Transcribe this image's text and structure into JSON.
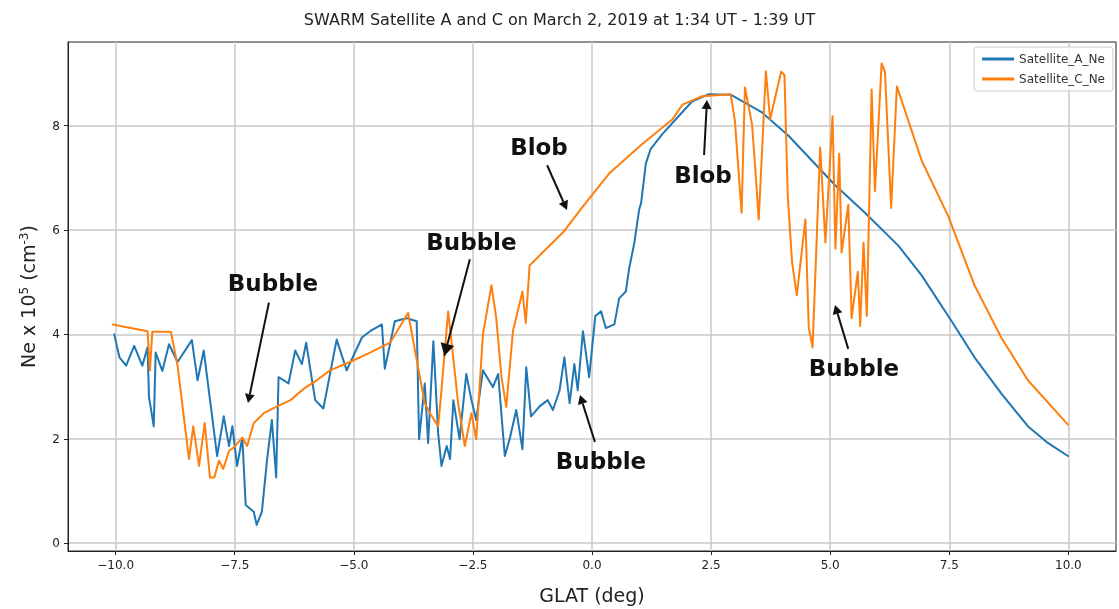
{
  "chart_data": {
    "type": "line",
    "title": "SWARM Satellite A and C on March 2, 2019 at 1:34 UT - 1:39 UT",
    "xlabel": "GLAT (deg)",
    "ylabel": "Ne x 10$^{5}$ (cm$^{-3}$)",
    "xlim": [
      -11,
      11
    ],
    "xticks": [
      {
        "value": -10,
        "label": "−10.0"
      },
      {
        "value": -7.5,
        "label": "−7.5"
      },
      {
        "value": -5,
        "label": "−5.0"
      },
      {
        "value": -2.5,
        "label": "−2.5"
      },
      {
        "value": 0,
        "label": "0.0"
      },
      {
        "value": 2.5,
        "label": "2.5"
      },
      {
        "value": 5,
        "label": "5.0"
      },
      {
        "value": 7.5,
        "label": "7.5"
      },
      {
        "value": 10,
        "label": "10.0"
      }
    ],
    "ylim": [
      -0.15,
      9.6
    ],
    "yticks": [
      0,
      2,
      4,
      6,
      8
    ],
    "grid": true,
    "legend": "top right",
    "marker": "none",
    "line_style": "solid",
    "series": [
      {
        "name": "Satellite_A_Ne",
        "color": "#1f77b4",
        "x": [
          -10.03,
          -9.92,
          -9.78,
          -9.61,
          -9.44,
          -9.33,
          -9.3,
          -9.2,
          -9.16,
          -9.02,
          -8.88,
          -8.7,
          -8.4,
          -8.28,
          -8.15,
          -7.87,
          -7.73,
          -7.62,
          -7.55,
          -7.45,
          -7.34,
          -7.27,
          -7.1,
          -7.04,
          -6.93,
          -6.82,
          -6.72,
          -6.63,
          -6.58,
          -6.37,
          -6.23,
          -6.09,
          -6.0,
          -5.91,
          -5.81,
          -5.64,
          -5.36,
          -5.15,
          -4.83,
          -4.66,
          -4.41,
          -4.35,
          -4.24,
          -4.14,
          -3.89,
          -3.68,
          -3.63,
          -3.51,
          -3.44,
          -3.33,
          -3.23,
          -3.16,
          -3.05,
          -2.98,
          -2.91,
          -2.78,
          -2.64,
          -2.53,
          -2.43,
          -2.29,
          -2.08,
          -1.97,
          -1.83,
          -1.73,
          -1.59,
          -1.46,
          -1.38,
          -1.28,
          -1.1,
          -0.93,
          -0.82,
          -0.68,
          -0.58,
          -0.47,
          -0.37,
          -0.3,
          -0.19,
          -0.06,
          0.07,
          0.19,
          0.29,
          0.47,
          0.57,
          0.71,
          0.78,
          0.89,
          0.99,
          1.03,
          1.13,
          1.23,
          1.48,
          1.76,
          2.1,
          2.45,
          2.91,
          3.57,
          4.13,
          5.1,
          5.73,
          6.43,
          6.92,
          7.55,
          8.03,
          8.59,
          9.15,
          9.57,
          9.99
        ],
        "values": [
          4.0,
          3.56,
          3.4,
          3.78,
          3.4,
          3.75,
          2.8,
          2.24,
          3.65,
          3.3,
          3.81,
          3.47,
          3.89,
          3.12,
          3.69,
          1.67,
          2.43,
          1.86,
          2.24,
          1.48,
          2.02,
          0.73,
          0.6,
          0.35,
          0.6,
          1.61,
          2.36,
          1.26,
          3.18,
          3.06,
          3.69,
          3.43,
          3.84,
          3.31,
          2.74,
          2.58,
          3.9,
          3.31,
          3.94,
          4.06,
          4.19,
          3.34,
          3.81,
          4.25,
          4.31,
          4.25,
          1.99,
          3.06,
          1.92,
          3.87,
          2.11,
          1.48,
          1.86,
          1.61,
          2.74,
          1.99,
          3.24,
          2.74,
          2.36,
          3.31,
          2.99,
          3.24,
          1.67,
          1.99,
          2.55,
          1.8,
          3.37,
          2.43,
          2.62,
          2.74,
          2.55,
          2.93,
          3.56,
          2.68,
          3.43,
          2.93,
          4.06,
          3.18,
          4.35,
          4.44,
          4.12,
          4.19,
          4.69,
          4.82,
          5.26,
          5.76,
          6.39,
          6.51,
          7.27,
          7.55,
          7.84,
          8.12,
          8.46,
          8.6,
          8.59,
          8.25,
          7.8,
          6.86,
          6.33,
          5.7,
          5.13,
          4.25,
          3.56,
          2.87,
          2.24,
          1.92,
          1.67
        ]
      },
      {
        "name": "Satellite_C_Ne",
        "color": "#ff7f0e",
        "x": [
          -10.06,
          -9.33,
          -9.28,
          -9.23,
          -8.84,
          -8.7,
          -8.46,
          -8.37,
          -8.25,
          -8.13,
          -8.02,
          -7.93,
          -7.83,
          -7.74,
          -7.62,
          -7.52,
          -7.34,
          -7.24,
          -7.1,
          -6.89,
          -6.61,
          -6.33,
          -6.05,
          -5.78,
          -5.5,
          -5.08,
          -4.66,
          -4.24,
          -3.86,
          -3.72,
          -3.51,
          -3.4,
          -3.23,
          -3.16,
          -3.02,
          -2.95,
          -2.81,
          -2.67,
          -2.53,
          -2.43,
          -2.29,
          -2.11,
          -2.01,
          -1.9,
          -1.8,
          -1.66,
          -1.46,
          -1.39,
          -1.31,
          -0.96,
          -0.61,
          -0.19,
          0.36,
          1.06,
          1.69,
          1.9,
          2.31,
          2.91,
          3.0,
          3.14,
          3.21,
          3.36,
          3.42,
          3.5,
          3.65,
          3.74,
          3.97,
          4.04,
          4.11,
          4.2,
          4.3,
          4.48,
          4.55,
          4.63,
          4.79,
          4.9,
          5.05,
          5.11,
          5.19,
          5.24,
          5.38,
          5.45,
          5.58,
          5.63,
          5.7,
          5.77,
          5.87,
          5.94,
          6.08,
          6.15,
          6.28,
          6.4,
          6.92,
          7.48,
          8.03,
          8.59,
          9.15,
          9.99
        ],
        "values": [
          4.19,
          4.06,
          3.31,
          4.05,
          4.05,
          3.4,
          1.61,
          2.24,
          1.48,
          2.3,
          1.26,
          1.26,
          1.58,
          1.42,
          1.77,
          1.83,
          2.02,
          1.86,
          2.3,
          2.49,
          2.62,
          2.74,
          2.96,
          3.12,
          3.31,
          3.47,
          3.65,
          3.84,
          4.41,
          3.71,
          2.68,
          2.49,
          2.24,
          2.93,
          4.44,
          3.87,
          2.68,
          1.86,
          2.49,
          1.99,
          4.0,
          4.94,
          4.31,
          3.18,
          2.61,
          4.06,
          4.82,
          4.22,
          5.32,
          5.64,
          5.95,
          6.45,
          7.08,
          7.65,
          8.12,
          8.4,
          8.56,
          8.6,
          8.09,
          6.33,
          8.73,
          8.02,
          7.27,
          6.2,
          9.04,
          8.12,
          9.03,
          8.97,
          6.64,
          5.38,
          4.75,
          6.2,
          4.13,
          3.75,
          7.58,
          5.76,
          8.18,
          5.64,
          7.46,
          5.57,
          6.48,
          4.31,
          5.2,
          4.16,
          5.76,
          4.35,
          8.69,
          6.74,
          9.19,
          9.03,
          6.42,
          8.75,
          7.33,
          6.26,
          4.94,
          3.94,
          3.12,
          2.27
        ]
      }
    ],
    "annotations": [
      "Bubble",
      {
        "text": "Bubble",
        "x": -3.1,
        "y": 3.59
      },
      "Blob",
      "Blob",
      "Bubble",
      "Bubble"
    ]
  }
}
